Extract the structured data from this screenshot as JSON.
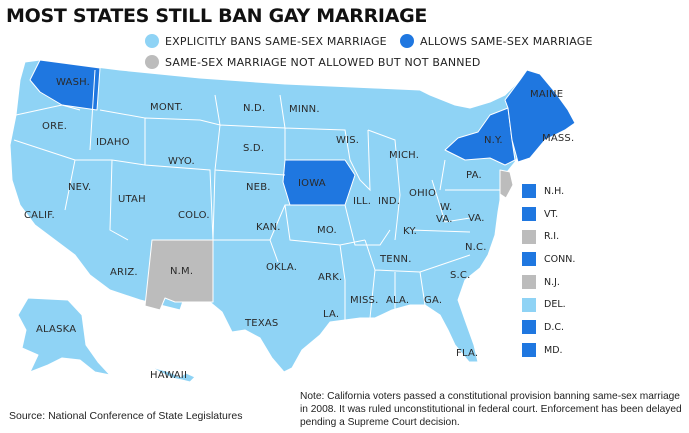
{
  "title": "MOST STATES STILL BAN GAY MARRIAGE",
  "colors": {
    "bans": "#8fd3f5",
    "allows": "#1f77e0",
    "neither": "#bcbcbc",
    "border": "#ffffff"
  },
  "legend": {
    "bans": "EXPLICITLY BANS SAME-SEX MARRIAGE",
    "allows": "ALLOWS SAME-SEX MARRIAGE",
    "neither": "SAME-SEX MARRIAGE NOT ALLOWED BUT NOT BANNED"
  },
  "states": {
    "wash": "WASH.",
    "ore": "ORE.",
    "calif": "CALIF.",
    "idaho": "IDAHO",
    "nev": "NEV.",
    "mont": "MONT.",
    "wyo": "WYO.",
    "utah": "UTAH",
    "ariz": "ARIZ.",
    "colo": "COLO.",
    "nm": "N.M.",
    "nd": "N.D.",
    "sd": "S.D.",
    "neb": "NEB.",
    "kan": "KAN.",
    "okla": "OKLA.",
    "texas": "TEXAS",
    "minn": "MINN.",
    "iowa": "IOWA",
    "mo": "MO.",
    "ark": "ARK.",
    "la": "LA.",
    "wis": "WIS.",
    "ill": "ILL.",
    "mich": "MICH.",
    "ind": "IND.",
    "ohio": "OHIO",
    "ky": "KY.",
    "tenn": "TENN.",
    "miss": "MISS.",
    "ala": "ALA.",
    "ga": "GA.",
    "fla": "FLA.",
    "sc": "S.C.",
    "nc": "N.C.",
    "va": "VA.",
    "wva_w": "W.",
    "wva_va": "VA.",
    "pa": "PA.",
    "ny": "N.Y.",
    "maine": "MAINE",
    "mass": "MASS.",
    "alaska": "ALASKA",
    "hawaii": "HAWAII"
  },
  "side_legend": [
    {
      "label": "N.H.",
      "status": "allows"
    },
    {
      "label": "VT.",
      "status": "allows"
    },
    {
      "label": "R.I.",
      "status": "neither"
    },
    {
      "label": "CONN.",
      "status": "allows"
    },
    {
      "label": "N.J.",
      "status": "neither"
    },
    {
      "label": "DEL.",
      "status": "bans"
    },
    {
      "label": "D.C.",
      "status": "allows"
    },
    {
      "label": "MD.",
      "status": "allows"
    }
  ],
  "source": "Source: National Conference of State Legislatures",
  "note": "Note: California voters passed a constitutional provision banning same-sex marriage in 2008. It was ruled unconstitutional in federal court. Enforcement has been delayed pending a Supreme Court decision."
}
